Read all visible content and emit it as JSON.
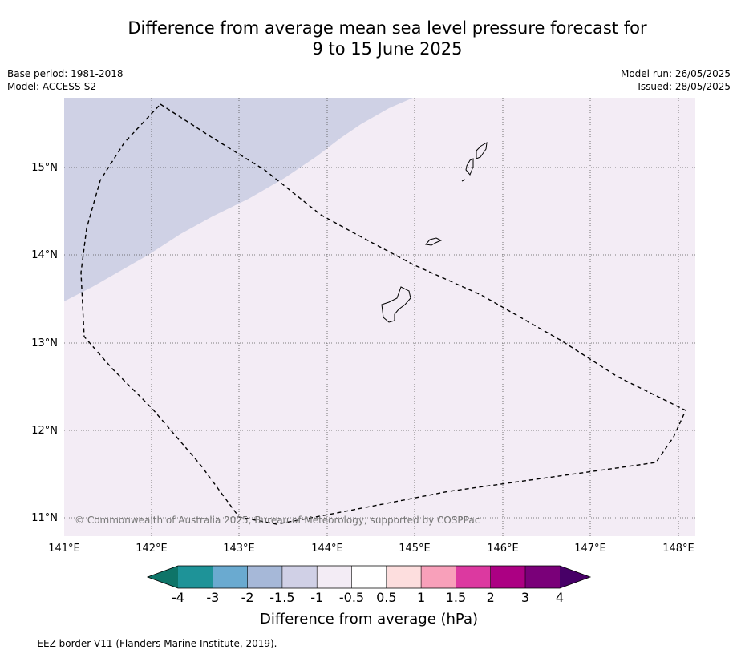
{
  "title": {
    "line1": "Difference from average mean sea level pressure forecast for",
    "line2": "9 to 15 June 2025"
  },
  "meta_left": {
    "base_period": "Base period: 1981-2018",
    "model": "Model: ACCESS-S2"
  },
  "meta_right": {
    "model_run": "Model run: 26/05/2025",
    "issued": "Issued: 28/05/2025"
  },
  "map": {
    "lon_ticks": [
      "141°E",
      "142°E",
      "143°E",
      "144°E",
      "145°E",
      "146°E",
      "147°E",
      "148°E"
    ],
    "lat_ticks": [
      "15°N",
      "14°N",
      "13°N",
      "12°N",
      "11°N"
    ],
    "copyright": "© Commonwealth of Australia 2025, Bureau of Meteorology, supported by COSPPac",
    "colors": {
      "background_fill": "#f3ecf5",
      "low_fill": "#cfd1e5",
      "eez_border": "#000000",
      "coast": "#000000"
    }
  },
  "colorbar": {
    "title": "Difference from average (hPa)",
    "tick_labels": [
      "-4",
      "-3",
      "-2",
      "-1.5",
      "-1",
      "-0.5",
      "0.5",
      "1",
      "1.5",
      "2",
      "3",
      "4"
    ],
    "colors": [
      "#0e7468",
      "#1e9398",
      "#6aaad0",
      "#a6b8d8",
      "#d0d0e6",
      "#f3ecf5",
      "#ffffff",
      "#fddede",
      "#f8a0ba",
      "#dc39a0",
      "#ac0083",
      "#7a0079",
      "#470067"
    ]
  },
  "footer": {
    "legend": "--  --  -- EEZ border V11 (Flanders Marine Institute, 2019)."
  }
}
